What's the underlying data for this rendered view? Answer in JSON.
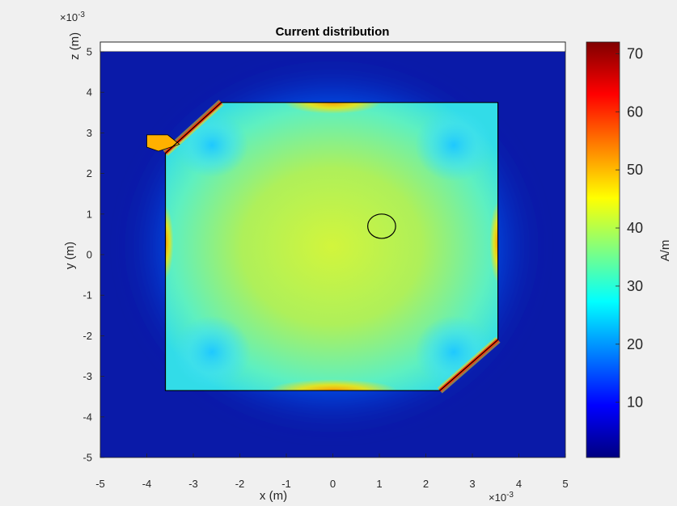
{
  "chart_data": {
    "type": "heatmap",
    "title": "Current distribution",
    "xlabel": "x (m)",
    "ylabel": "y (m)",
    "zlabel": "z (m)",
    "axis_multiplier": "×10",
    "axis_exponent": "-3",
    "xlim": [
      -5,
      5
    ],
    "ylim": [
      -5,
      5
    ],
    "x_ticks": [
      "-5",
      "-4",
      "-3",
      "-2",
      "-1",
      "0",
      "1",
      "2",
      "3",
      "4",
      "5"
    ],
    "y_ticks": [
      "-5",
      "-4",
      "-3",
      "-2",
      "-1",
      "0",
      "1",
      "2",
      "3",
      "4",
      "5"
    ],
    "colorbar": {
      "label": "A/m",
      "range": [
        0.5,
        72
      ],
      "ticks": [
        "10",
        "20",
        "30",
        "40",
        "50",
        "60",
        "70"
      ],
      "tick_values": [
        10,
        20,
        30,
        40,
        50,
        60,
        70
      ],
      "colormap": "jet"
    },
    "patch_outline_mm": [
      [
        -3.6,
        2.5
      ],
      [
        -2.4,
        3.75
      ],
      [
        3.55,
        3.75
      ],
      [
        3.55,
        -2.1
      ],
      [
        2.3,
        -3.35
      ],
      [
        -3.6,
        -3.35
      ]
    ],
    "feed_stub_mm": [
      [
        -4.0,
        2.95
      ],
      [
        -3.55,
        2.95
      ],
      [
        -3.3,
        2.72
      ],
      [
        -3.75,
        2.55
      ],
      [
        -4.0,
        2.65
      ]
    ],
    "probe_circle_mm": {
      "cx": 1.05,
      "cy": 0.7,
      "r": 0.3
    },
    "current_values_A_per_m": {
      "background": 3,
      "patch_center": 38,
      "patch_edge_mid": 42,
      "top_edge_max": 50,
      "bottom_edge_max": 52,
      "corner_max": 70,
      "corner_low": 22
    }
  }
}
